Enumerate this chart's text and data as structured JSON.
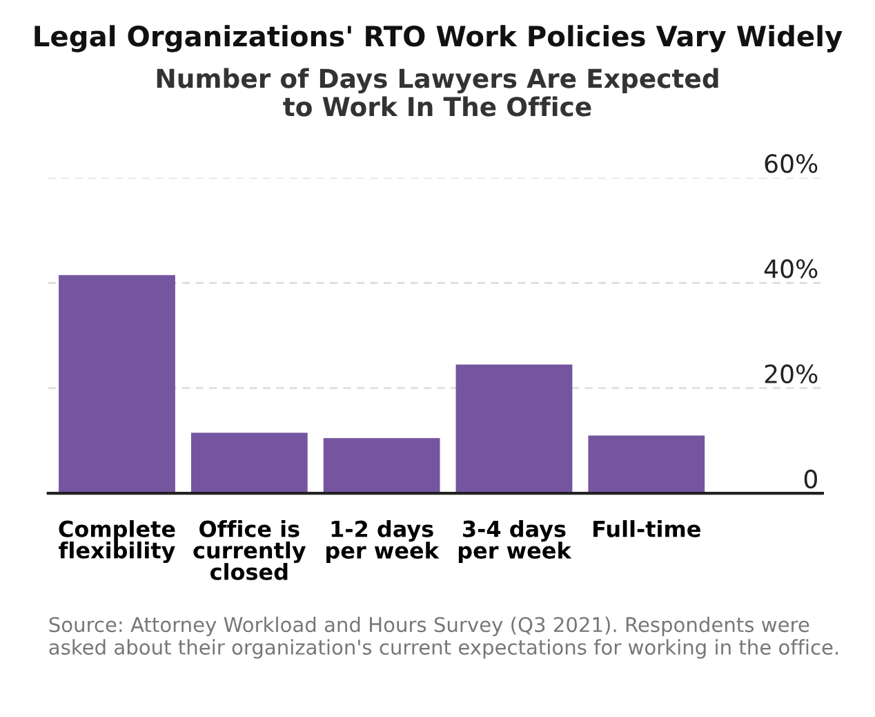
{
  "chart_data": {
    "type": "bar",
    "title": "Legal Organizations' RTO Work Policies Vary Widely",
    "subtitle": "Number of Days Lawyers Are Expected\nto Work In The Office",
    "categories": [
      "Complete\nflexibility",
      "Office is\ncurrently\nclosed",
      "1-2 days\nper week",
      "3-4 days\nper week",
      "Full-time"
    ],
    "values": [
      41.5,
      11.5,
      10.5,
      24.5,
      11
    ],
    "color": "#75559f",
    "ylim": [
      0,
      60
    ],
    "yticks": [
      {
        "value": 0,
        "label": "0"
      },
      {
        "value": 20,
        "label": "20%"
      },
      {
        "value": 40,
        "label": "40%"
      },
      {
        "value": 60,
        "label": "60%"
      }
    ],
    "grid": "y",
    "annotations": [
      "Source: Attorney Workload and Hours Survey (Q3 2021). Respondents were asked about their organization's current expectations for working in the office."
    ]
  }
}
